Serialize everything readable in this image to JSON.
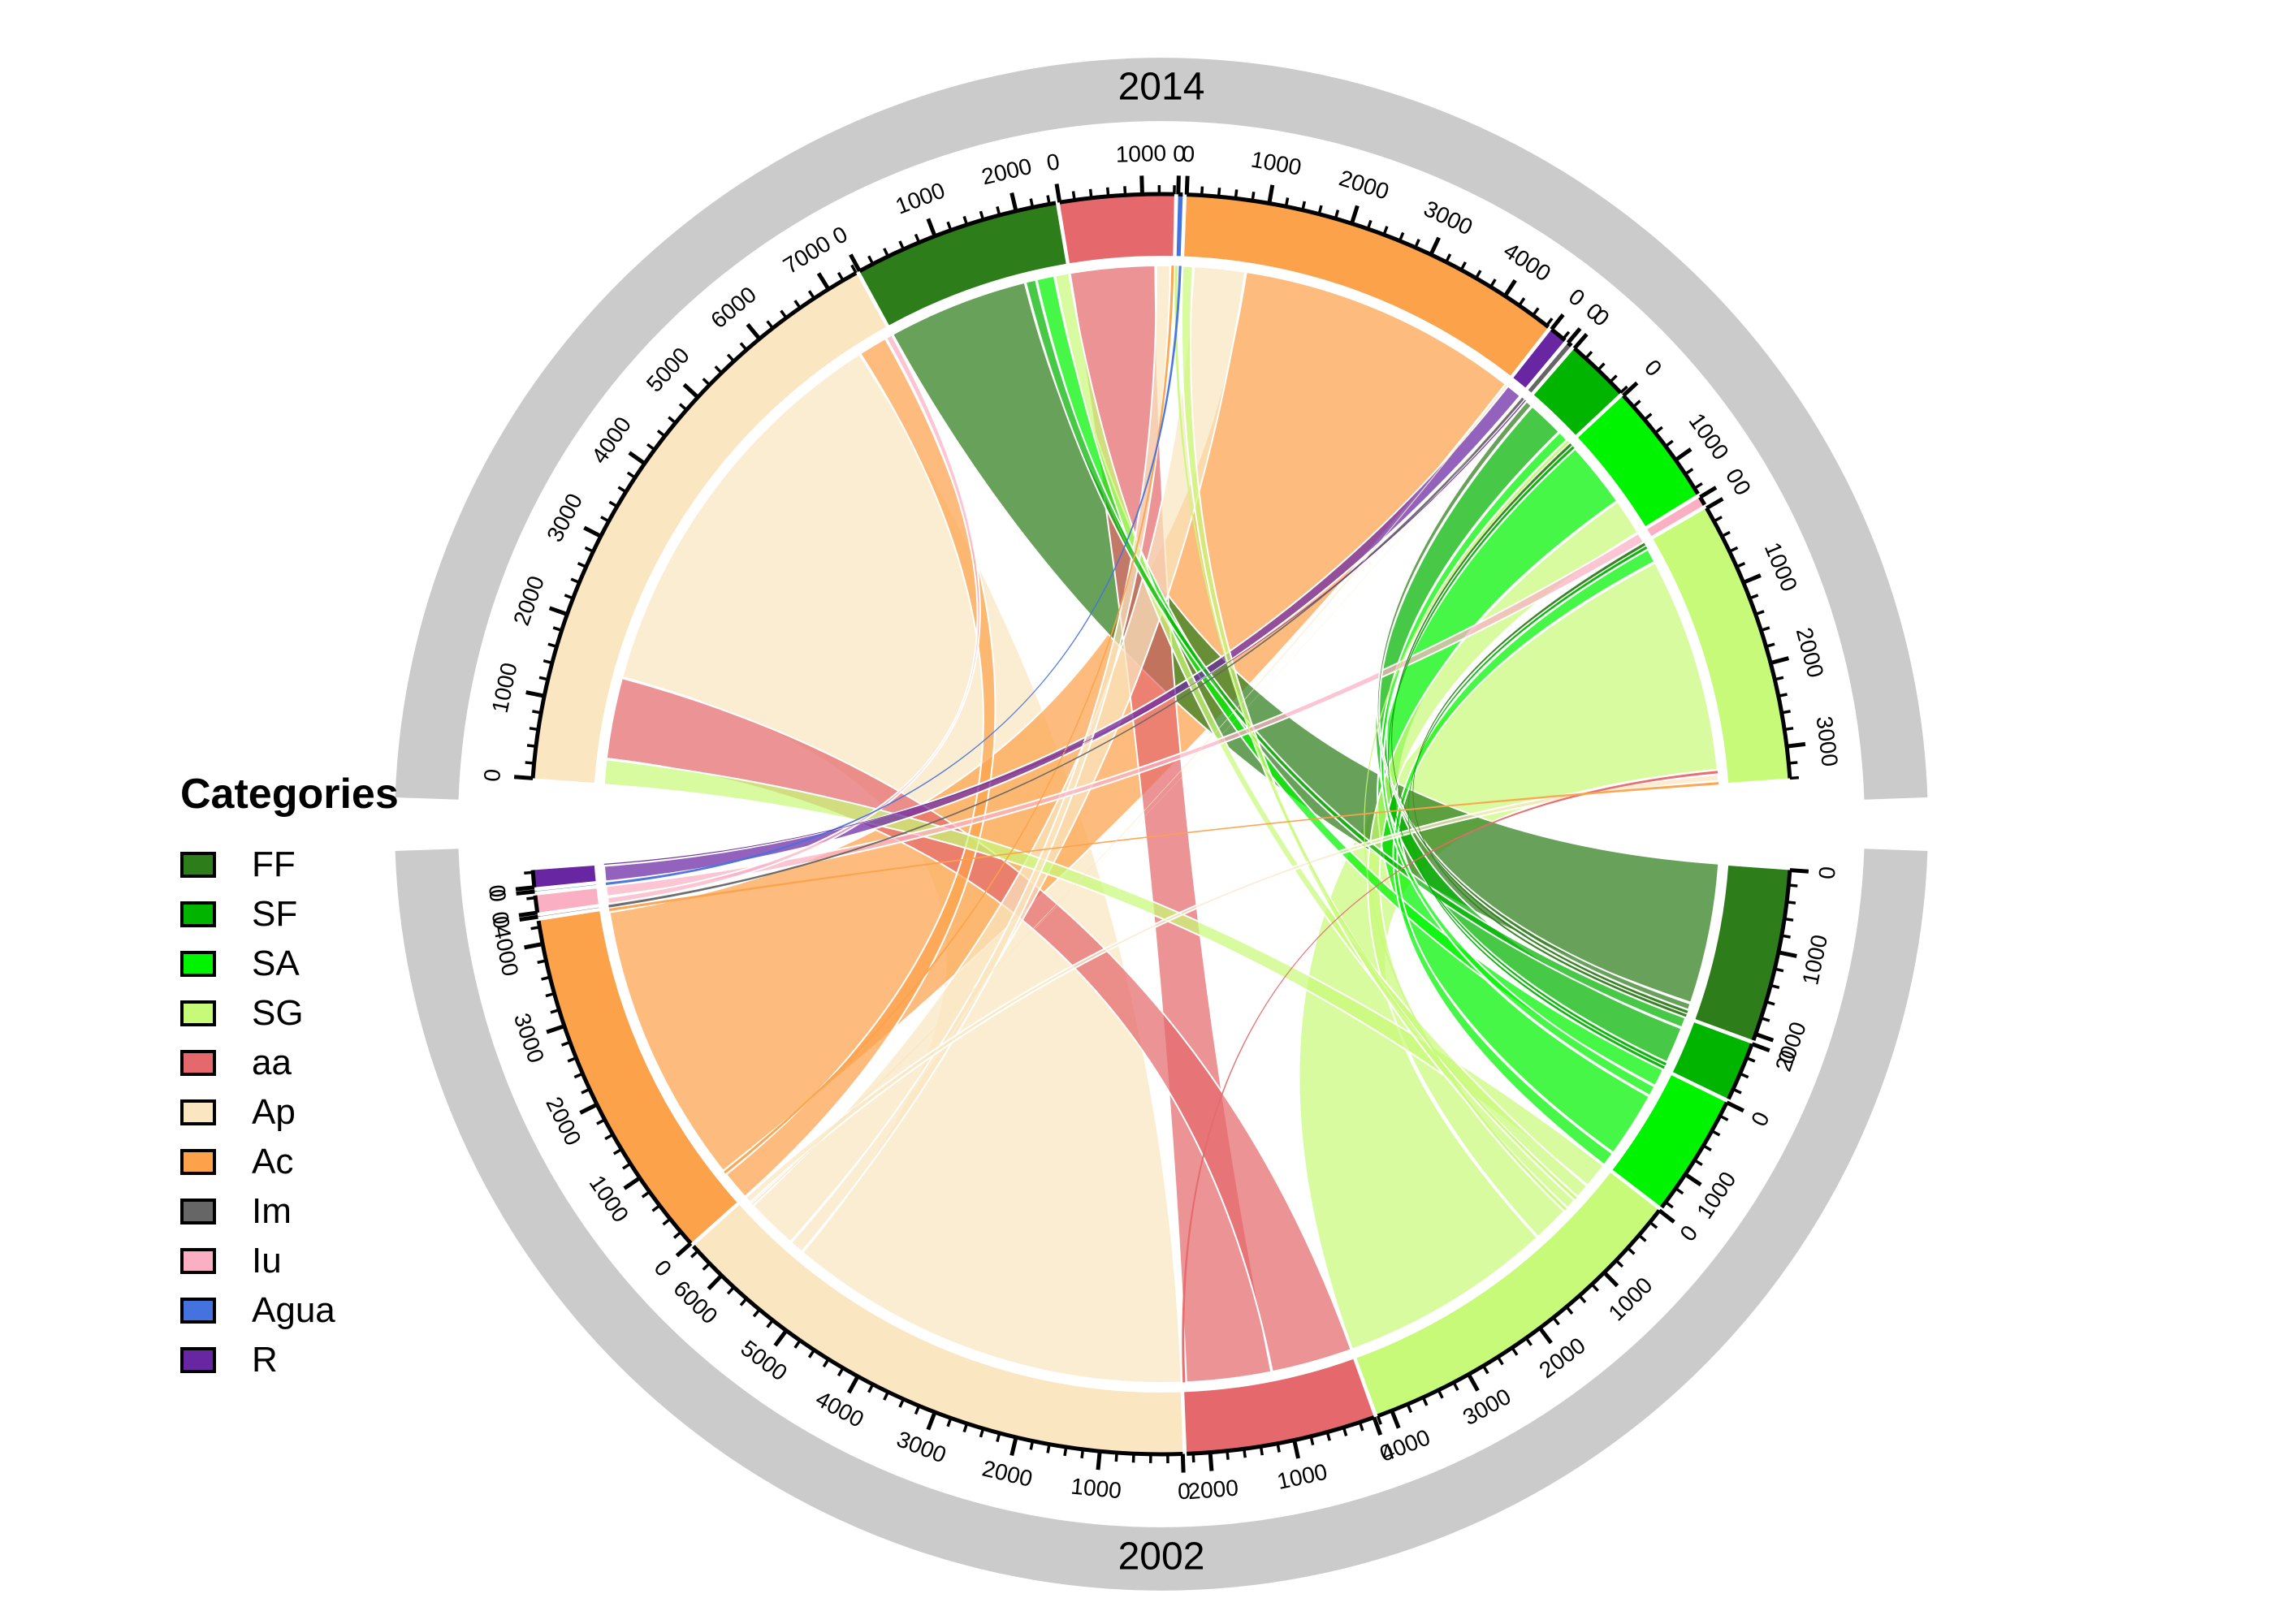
{
  "legend": {
    "title": "Categories",
    "items": [
      {
        "label": "FF"
      },
      {
        "label": "SF"
      },
      {
        "label": "SA"
      },
      {
        "label": "SG"
      },
      {
        "label": "aa"
      },
      {
        "label": "Ap"
      },
      {
        "label": "Ac"
      },
      {
        "label": "Im"
      },
      {
        "label": "Iu"
      },
      {
        "label": "Agua"
      },
      {
        "label": "R"
      }
    ]
  },
  "chart_data": {
    "type": "chord",
    "title": "",
    "description": "Chord diagram of category transitions from 2002 (bottom half) to 2014 (top half); sector axes in area units, major ticks every 1000, minor every 200.",
    "top": {
      "label": "2014",
      "sectors": [
        {
          "category": "Ap",
          "total": 7400
        },
        {
          "category": "FF",
          "total": 2500
        },
        {
          "category": "aa",
          "total": 1400
        },
        {
          "category": "Agua",
          "total": 100
        },
        {
          "category": "Ac",
          "total": 4650
        },
        {
          "category": "R",
          "total": 250
        },
        {
          "category": "Im",
          "total": 100
        },
        {
          "category": "SF",
          "total": 800
        },
        {
          "category": "SA",
          "total": 1500
        },
        {
          "category": "Iu",
          "total": 150
        },
        {
          "category": "SG",
          "total": 3400
        }
      ]
    },
    "bottom": {
      "label": "2002",
      "sectors": [
        {
          "category": "FF",
          "total": 2100
        },
        {
          "category": "SF",
          "total": 750
        },
        {
          "category": "SA",
          "total": 1500
        },
        {
          "category": "SG",
          "total": 4200
        },
        {
          "category": "aa",
          "total": 2300
        },
        {
          "category": "Ap",
          "total": 6500
        },
        {
          "category": "Ac",
          "total": 4300
        },
        {
          "category": "Im",
          "total": 50
        },
        {
          "category": "Iu",
          "total": 250
        },
        {
          "category": "Agua",
          "total": 50
        },
        {
          "category": "R",
          "total": 250
        }
      ]
    },
    "flows": [
      {
        "from": "FF",
        "to": "FF",
        "value": 1900
      },
      {
        "from": "FF",
        "to": "SF",
        "value": 100
      },
      {
        "from": "FF",
        "to": "SA",
        "value": 50
      },
      {
        "from": "FF",
        "to": "SG",
        "value": 50
      },
      {
        "from": "SF",
        "to": "FF",
        "value": 150
      },
      {
        "from": "SF",
        "to": "SF",
        "value": 500
      },
      {
        "from": "SF",
        "to": "SA",
        "value": 50
      },
      {
        "from": "SF",
        "to": "SG",
        "value": 50
      },
      {
        "from": "SA",
        "to": "FF",
        "value": 250
      },
      {
        "from": "SA",
        "to": "SF",
        "value": 150
      },
      {
        "from": "SA",
        "to": "SA",
        "value": 900
      },
      {
        "from": "SA",
        "to": "SG",
        "value": 200
      },
      {
        "from": "SG",
        "to": "Ap",
        "value": 350
      },
      {
        "from": "SG",
        "to": "FF",
        "value": 200
      },
      {
        "from": "SG",
        "to": "Agua",
        "value": 50
      },
      {
        "from": "SG",
        "to": "Ac",
        "value": 150
      },
      {
        "from": "SG",
        "to": "SF",
        "value": 50
      },
      {
        "from": "SG",
        "to": "SA",
        "value": 500
      },
      {
        "from": "SG",
        "to": "SG",
        "value": 2900
      },
      {
        "from": "aa",
        "to": "Ap",
        "value": 1100
      },
      {
        "from": "aa",
        "to": "aa",
        "value": 1150
      },
      {
        "from": "aa",
        "to": "SG",
        "value": 50
      },
      {
        "from": "Ap",
        "to": "Ap",
        "value": 5450
      },
      {
        "from": "Ap",
        "to": "aa",
        "value": 200
      },
      {
        "from": "Ap",
        "to": "Ac",
        "value": 700
      },
      {
        "from": "Ap",
        "to": "R",
        "value": 30
      },
      {
        "from": "Ap",
        "to": "Im",
        "value": 20
      },
      {
        "from": "Ap",
        "to": "SG",
        "value": 100
      },
      {
        "from": "Ac",
        "to": "Ap",
        "value": 400
      },
      {
        "from": "Ac",
        "to": "aa",
        "value": 50
      },
      {
        "from": "Ac",
        "to": "Ac",
        "value": 3800
      },
      {
        "from": "Ac",
        "to": "SG",
        "value": 50
      },
      {
        "from": "Im",
        "to": "Im",
        "value": 50
      },
      {
        "from": "Iu",
        "to": "Ap",
        "value": 100
      },
      {
        "from": "Iu",
        "to": "Iu",
        "value": 150
      },
      {
        "from": "Agua",
        "to": "Agua",
        "value": 50
      },
      {
        "from": "R",
        "to": "R",
        "value": 220
      },
      {
        "from": "R",
        "to": "Im",
        "value": 30
      }
    ],
    "axis": {
      "major_tick_interval": 1000,
      "minor_tick_interval": 200
    },
    "colors": {
      "FF": "#2E7D1B",
      "SF": "#00B400",
      "SA": "#00F400",
      "SG": "#C7FA78",
      "aa": "#E5696C",
      "Ap": "#FAE6C0",
      "Ac": "#FCA24B",
      "Im": "#666666",
      "Iu": "#FBAFC3",
      "Agua": "#4472DE",
      "R": "#6926A3"
    },
    "ring_color": "#CBCBCB",
    "layout": {
      "legend_position": "left",
      "grid": false
    }
  }
}
